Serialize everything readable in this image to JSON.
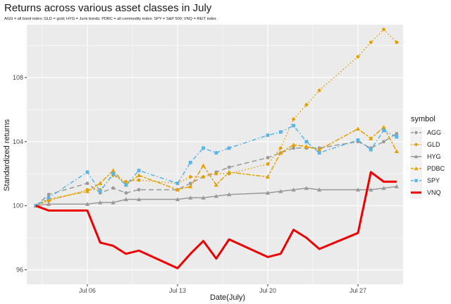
{
  "chart_data": {
    "type": "line",
    "title": "Returns across various asset classes in July",
    "subtitle": "AGG = all bond index; GLD = gold; HYG = Junk bonds; PDBC = all commodity index; SPY = S&P 500; VNQ = REIT index",
    "xlabel": "Date(July)",
    "ylabel": "Standardized returns",
    "xlim": [
      1.3,
      30.5
    ],
    "ylim": [
      95.1,
      111.3
    ],
    "x_ticks": [
      6,
      13,
      20,
      27
    ],
    "x_tick_labels": [
      "Jul 06",
      "Jul 13",
      "Jul 20",
      "Jul 27"
    ],
    "y_ticks": [
      96,
      100,
      104,
      108
    ],
    "y_tick_labels": [
      "96",
      "100",
      "104",
      "108"
    ],
    "x_gridlines": [
      6,
      13,
      20,
      27
    ],
    "grid": true,
    "legend_title": "symbol",
    "legend_position": "right",
    "x": [
      2,
      3,
      6,
      7,
      8,
      9,
      10,
      13,
      14,
      15,
      16,
      17,
      20,
      21,
      22,
      23,
      24,
      27,
      28,
      29,
      30
    ],
    "series": [
      {
        "name": "AGG",
        "color": "#999999",
        "linestyle": "longdash",
        "marker": "circle",
        "values": [
          100.0,
          100.7,
          101.4,
          100.8,
          101.1,
          100.8,
          101.0,
          101.0,
          101.4,
          101.8,
          102.1,
          102.4,
          103.0,
          103.3,
          103.6,
          103.6,
          103.6,
          104.0,
          103.6,
          104.0,
          104.5
        ]
      },
      {
        "name": "GLD",
        "color": "#e69f00",
        "linestyle": "dotted",
        "marker": "circle",
        "values": [
          100.0,
          100.3,
          101.0,
          101.0,
          101.9,
          101.5,
          101.6,
          101.4,
          101.8,
          101.8,
          102.0,
          102.0,
          102.6,
          103.6,
          105.4,
          106.3,
          107.2,
          109.3,
          110.2,
          111.0,
          110.2
        ]
      },
      {
        "name": "HYG",
        "color": "#999999",
        "linestyle": "solid",
        "marker": "triangle",
        "values": [
          100.0,
          100.1,
          100.1,
          100.2,
          100.2,
          100.4,
          100.4,
          100.4,
          100.5,
          100.5,
          100.6,
          100.7,
          100.8,
          100.9,
          101.0,
          101.1,
          101.0,
          101.0,
          101.0,
          101.1,
          101.2
        ]
      },
      {
        "name": "PDBC",
        "color": "#e69f00",
        "linestyle": "twodash",
        "marker": "triangle",
        "values": [
          100.0,
          100.4,
          100.9,
          101.4,
          102.2,
          101.3,
          101.9,
          101.0,
          101.2,
          102.5,
          101.3,
          102.1,
          101.8,
          103.3,
          103.8,
          103.7,
          103.5,
          104.8,
          104.2,
          104.9,
          103.4
        ]
      },
      {
        "name": "SPY",
        "color": "#56b4e9",
        "linestyle": "dotdash",
        "marker": "square",
        "values": [
          100.0,
          100.5,
          102.1,
          100.9,
          102.0,
          101.3,
          102.2,
          101.4,
          102.7,
          103.6,
          103.3,
          103.6,
          104.4,
          104.6,
          105.0,
          104.0,
          103.3,
          104.1,
          103.5,
          104.7,
          104.3
        ]
      },
      {
        "name": "VNQ",
        "color": "#ee0000",
        "linestyle": "solid",
        "marker": "none",
        "linewidth": "thick",
        "values": [
          100.0,
          99.7,
          99.7,
          97.7,
          97.5,
          97.0,
          97.2,
          96.1,
          97.0,
          97.8,
          96.7,
          97.9,
          96.8,
          97.0,
          98.5,
          98.0,
          97.3,
          98.3,
          102.1,
          101.5,
          101.5
        ]
      }
    ]
  }
}
